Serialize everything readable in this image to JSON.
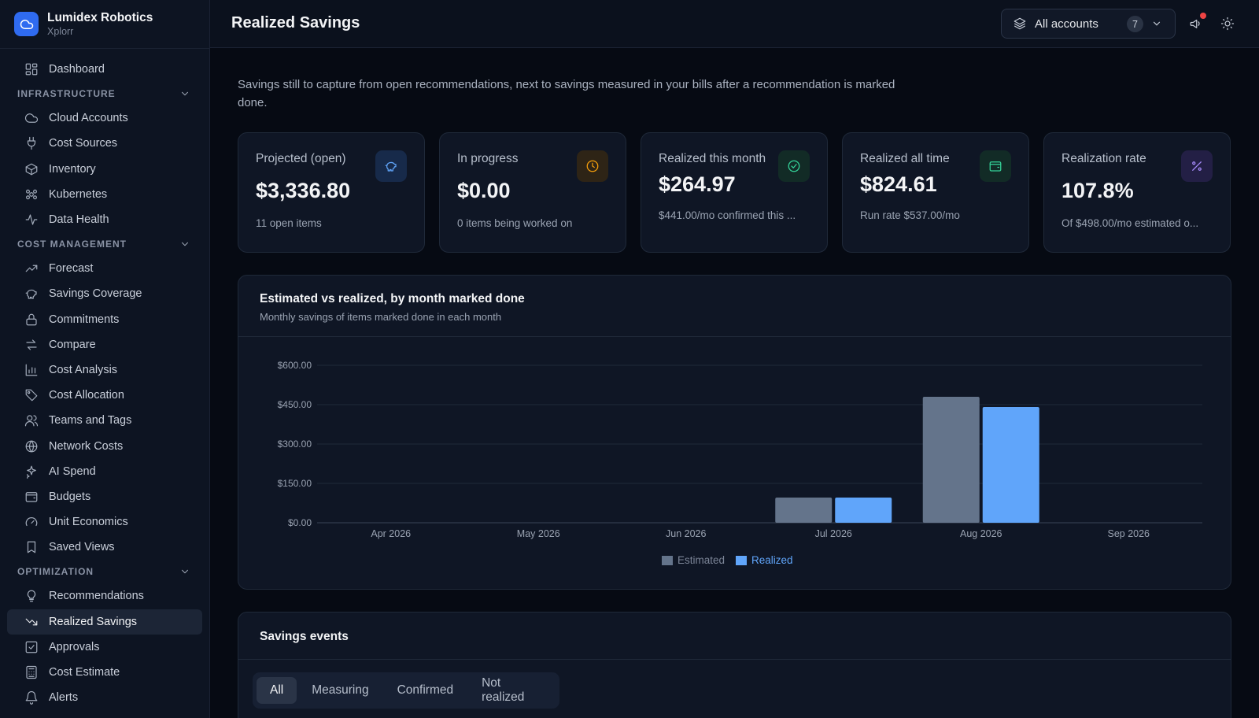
{
  "brand": {
    "name": "Lumidex Robotics",
    "sub": "Xplorr"
  },
  "sidebar": {
    "top": [
      {
        "label": "Dashboard",
        "icon": "dashboard-icon"
      }
    ],
    "sections": [
      {
        "title": "INFRASTRUCTURE",
        "items": [
          {
            "label": "Cloud Accounts",
            "icon": "cloud-icon"
          },
          {
            "label": "Cost Sources",
            "icon": "plug-icon"
          },
          {
            "label": "Inventory",
            "icon": "box-icon"
          },
          {
            "label": "Kubernetes",
            "icon": "kubernetes-icon"
          },
          {
            "label": "Data Health",
            "icon": "pulse-icon"
          }
        ]
      },
      {
        "title": "COST MANAGEMENT",
        "items": [
          {
            "label": "Forecast",
            "icon": "trend-up-icon"
          },
          {
            "label": "Savings Coverage",
            "icon": "piggy-bank-icon"
          },
          {
            "label": "Commitments",
            "icon": "lock-icon"
          },
          {
            "label": "Compare",
            "icon": "arrows-icon"
          },
          {
            "label": "Cost Analysis",
            "icon": "bar-chart-icon"
          },
          {
            "label": "Cost Allocation",
            "icon": "tag-icon"
          },
          {
            "label": "Teams and Tags",
            "icon": "users-icon"
          },
          {
            "label": "Network Costs",
            "icon": "globe-icon"
          },
          {
            "label": "AI Spend",
            "icon": "sparkles-icon"
          },
          {
            "label": "Budgets",
            "icon": "wallet-icon"
          },
          {
            "label": "Unit Economics",
            "icon": "gauge-icon"
          },
          {
            "label": "Saved Views",
            "icon": "bookmark-icon"
          }
        ]
      },
      {
        "title": "OPTIMIZATION",
        "items": [
          {
            "label": "Recommendations",
            "icon": "lightbulb-icon"
          },
          {
            "label": "Realized Savings",
            "icon": "trend-down-icon",
            "active": true
          },
          {
            "label": "Approvals",
            "icon": "check-square-icon"
          },
          {
            "label": "Cost Estimate",
            "icon": "calculator-icon"
          },
          {
            "label": "Alerts",
            "icon": "bell-icon"
          }
        ]
      }
    ]
  },
  "header": {
    "title": "Realized Savings",
    "account_selector": {
      "label": "All accounts",
      "count": "7"
    }
  },
  "intro": "Savings still to capture from open recommendations, next to savings measured in your bills after a recommendation is marked done.",
  "kpis": [
    {
      "label": "Projected (open)",
      "value": "$3,336.80",
      "sub": "11 open items",
      "icon": "piggy-bank-icon",
      "color": "#60a5fa",
      "bg": "#172a4a"
    },
    {
      "label": "In progress",
      "value": "$0.00",
      "sub": "0 items being worked on",
      "icon": "clock-icon",
      "color": "#f59e0b",
      "bg": "#2e2416"
    },
    {
      "label": "Realized this month",
      "value": "$264.97",
      "sub": "$441.00/mo confirmed this ...",
      "icon": "check-circle-icon",
      "color": "#34d399",
      "bg": "#122b26"
    },
    {
      "label": "Realized all time",
      "value": "$824.61",
      "sub": "Run rate $537.00/mo",
      "icon": "wallet-icon",
      "color": "#34d399",
      "bg": "#122b26"
    },
    {
      "label": "Realization rate",
      "value": "107.8%",
      "sub": "Of $498.00/mo estimated o...",
      "icon": "percent-icon",
      "color": "#a78bfa",
      "bg": "#231f45"
    }
  ],
  "chart_panel": {
    "title": "Estimated vs realized, by month marked done",
    "subtitle": "Monthly savings of items marked done in each month"
  },
  "chart_data": {
    "type": "bar",
    "categories": [
      "Apr 2026",
      "May 2026",
      "Jun 2026",
      "Jul 2026",
      "Aug 2026",
      "Sep 2026"
    ],
    "series": [
      {
        "name": "Estimated",
        "values": [
          0,
          0,
          0,
          96,
          480,
          0
        ],
        "color": "#64748b"
      },
      {
        "name": "Realized",
        "values": [
          0,
          0,
          0,
          96,
          441,
          0
        ],
        "color": "#60a5fa"
      }
    ],
    "yticks": [
      "$0.00",
      "$150.00",
      "$300.00",
      "$450.00",
      "$600.00"
    ],
    "ylim": [
      0,
      600
    ],
    "grid": true,
    "legend": "bottom-center"
  },
  "events_panel": {
    "title": "Savings events",
    "tabs": [
      "All",
      "Measuring",
      "Confirmed",
      "Not realized"
    ],
    "active_tab": "All"
  }
}
